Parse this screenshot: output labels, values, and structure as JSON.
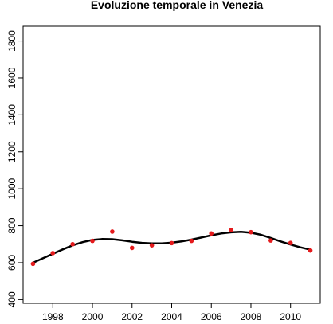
{
  "chart_data": {
    "type": "scatter",
    "title": "Evoluzione temporale in Venezia",
    "xlabel": "",
    "ylabel": "",
    "xlim": [
      1996.5,
      2011.5
    ],
    "ylim": [
      380,
      1880
    ],
    "x_ticks": [
      "1998",
      "2000",
      "2002",
      "2004",
      "2006",
      "2008",
      "2010"
    ],
    "y_ticks": [
      "400",
      "600",
      "800",
      "1000",
      "1200",
      "1400",
      "1600",
      "1800"
    ],
    "point_color": "#e41a1c",
    "line_color": "#000000",
    "series": [
      {
        "kind": "points",
        "x": [
          1997,
          1998,
          1999,
          2000,
          2001,
          2002,
          2003,
          2004,
          2005,
          2006,
          2007,
          2008,
          2009,
          2010,
          2011
        ],
        "y": [
          594,
          652,
          700,
          718,
          768,
          680,
          694,
          706,
          718,
          758,
          776,
          765,
          720,
          707,
          666
        ]
      },
      {
        "kind": "smooth-line",
        "x": [
          1997,
          1997.5,
          1998,
          1998.5,
          1999,
          1999.5,
          2000,
          2000.5,
          2001,
          2001.5,
          2002,
          2002.5,
          2003,
          2003.5,
          2004,
          2004.5,
          2005,
          2005.5,
          2006,
          2006.5,
          2007,
          2007.5,
          2008,
          2008.5,
          2009,
          2009.5,
          2010,
          2010.5,
          2011
        ],
        "y": [
          600,
          624,
          648,
          672,
          694,
          711,
          723,
          728,
          727,
          721,
          713,
          707,
          704,
          704,
          708,
          715,
          725,
          736,
          748,
          758,
          764,
          767,
          762,
          751,
          734,
          715,
          698,
          683,
          670
        ]
      }
    ]
  }
}
